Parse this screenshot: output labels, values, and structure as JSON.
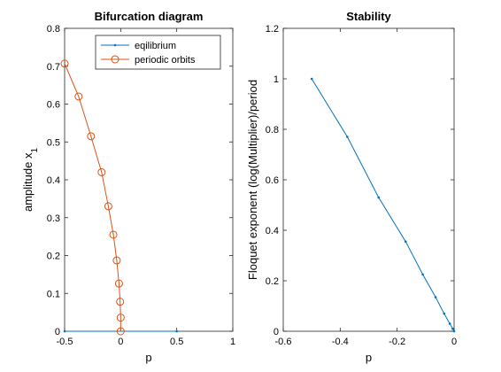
{
  "chart_data": [
    {
      "type": "line",
      "title": "Bifurcation diagram",
      "xlabel": "p",
      "ylabel": "amplitude x",
      "ylabel_subscript": "1",
      "xlim": [
        -0.5,
        1
      ],
      "ylim": [
        0,
        0.8
      ],
      "xticks": [
        -0.5,
        0,
        0.5,
        1
      ],
      "xtick_labels": [
        "-0.5",
        "0",
        "0.5",
        "1"
      ],
      "yticks": [
        0,
        0.1,
        0.2,
        0.3,
        0.4,
        0.5,
        0.6,
        0.7,
        0.8
      ],
      "ytick_labels": [
        "0",
        "0.1",
        "0.2",
        "0.3",
        "0.4",
        "0.5",
        "0.6",
        "0.7",
        "0.8"
      ],
      "grid": false,
      "legend_position": "top-right",
      "series": [
        {
          "name": "eqilibrium",
          "color": "#0072BD",
          "marker": "dot",
          "x": [
            -0.5,
            0.5
          ],
          "y": [
            0,
            0
          ]
        },
        {
          "name": "periodic orbits",
          "color": "#D95319",
          "marker": "circle",
          "x": [
            -0.5,
            -0.375,
            -0.265,
            -0.17,
            -0.11,
            -0.065,
            -0.035,
            -0.015,
            -0.005,
            0,
            0
          ],
          "y": [
            0.707,
            0.62,
            0.515,
            0.42,
            0.33,
            0.255,
            0.187,
            0.126,
            0.078,
            0.036,
            0
          ]
        }
      ]
    },
    {
      "type": "line",
      "title": "Stability",
      "xlabel": "p",
      "ylabel": "Floquet exponent (log(Multiplier)/period",
      "xlim": [
        -0.6,
        0
      ],
      "ylim": [
        0,
        1.2
      ],
      "xticks": [
        -0.6,
        -0.4,
        -0.2,
        0
      ],
      "xtick_labels": [
        "-0.6",
        "-0.4",
        "-0.2",
        "0"
      ],
      "yticks": [
        0,
        0.2,
        0.4,
        0.6,
        0.8,
        1,
        1.2
      ],
      "ytick_labels": [
        "0",
        "0.2",
        "0.4",
        "0.6",
        "0.8",
        "1",
        "1.2"
      ],
      "grid": false,
      "series": [
        {
          "color": "#0072BD",
          "marker": "dot",
          "x": [
            -0.5,
            -0.375,
            -0.265,
            -0.17,
            -0.11,
            -0.065,
            -0.035,
            -0.015,
            -0.005,
            0
          ],
          "y": [
            1.0,
            0.77,
            0.53,
            0.355,
            0.225,
            0.135,
            0.07,
            0.03,
            0.01,
            0
          ]
        }
      ]
    }
  ]
}
